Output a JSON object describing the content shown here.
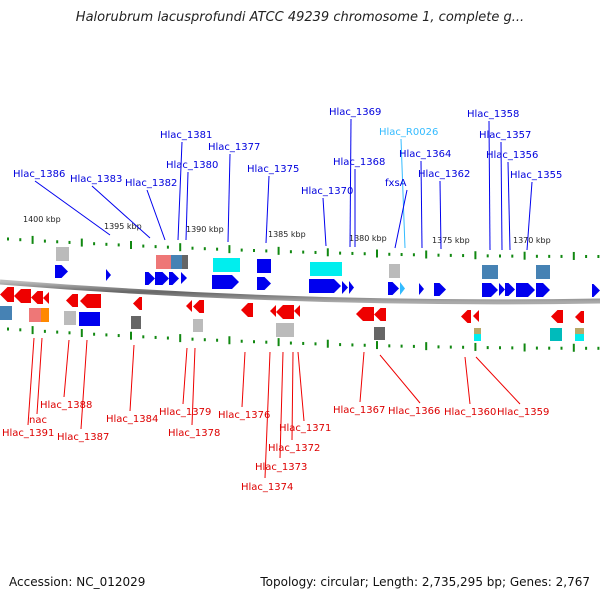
{
  "title": "Halorubrum lacusprofundi ATCC 49239 chromosome 1, complete g...",
  "footer": {
    "accession": "Accession: NC_012029",
    "topology": "Topology: circular; Length: 2,735,295 bp; Genes: 2,767"
  },
  "colors": {
    "forward": "#0000ee",
    "reverse": "#ee0000",
    "rna": "#33bbff",
    "tick": "#118811",
    "backbone": "#888888"
  },
  "scale": [
    "1400 kbp",
    "1395 kbp",
    "1390 kbp",
    "1385 kbp",
    "1380 kbp",
    "1375 kbp",
    "1370 kbp"
  ],
  "top_labels": [
    "Hlac_1386",
    "Hlac_1383",
    "Hlac_1382",
    "Hlac_1381",
    "Hlac_1380",
    "Hlac_1377",
    "Hlac_1375",
    "Hlac_1370",
    "Hlac_1369",
    "Hlac_1368",
    "Hlac_R0026",
    "Hlac_1364",
    "fxsA",
    "Hlac_1362",
    "Hlac_1358",
    "Hlac_1357",
    "Hlac_1356",
    "Hlac_1355"
  ],
  "bottom_labels": [
    "Hlac_1391",
    "nac",
    "Hlac_1388",
    "Hlac_1387",
    "Hlac_1384",
    "Hlac_1379",
    "Hlac_1378",
    "Hlac_1376",
    "Hlac_1374",
    "Hlac_1373",
    "Hlac_1372",
    "Hlac_1371",
    "Hlac_1367",
    "Hlac_1366",
    "Hlac_1360",
    "Hlac_1359"
  ]
}
